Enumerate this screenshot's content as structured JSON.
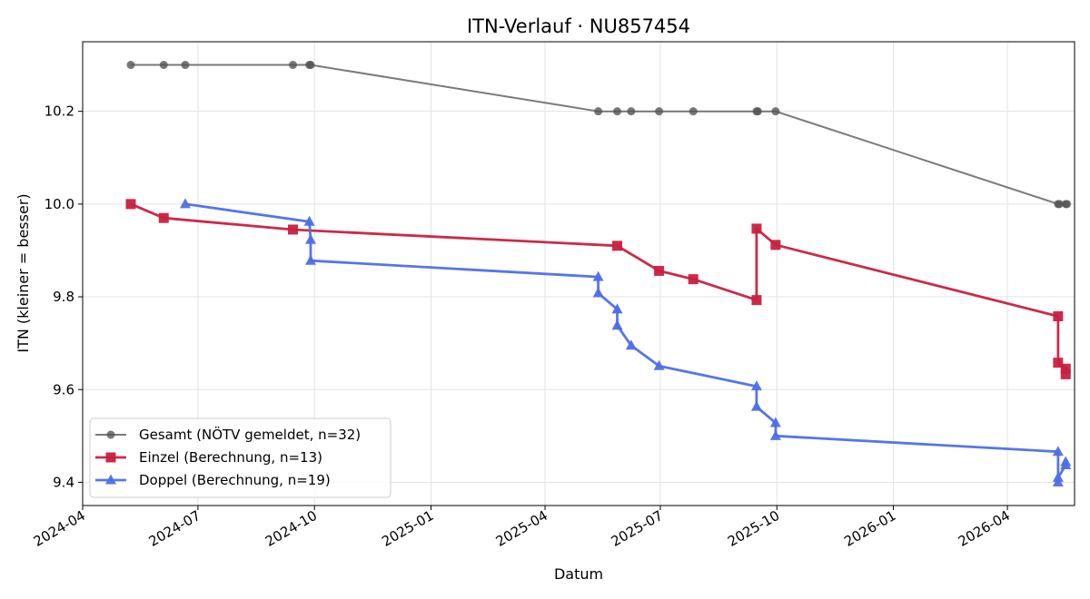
{
  "chart_data": {
    "type": "line",
    "title": "ITN-Verlauf · NU857454",
    "xlabel": "Datum",
    "ylabel": "ITN  (kleiner = besser)",
    "xlim": [
      "2024-04-01",
      "2026-05-24"
    ],
    "ylim": [
      9.35,
      10.35
    ],
    "x_ticks": [
      "2024-04",
      "2024-07",
      "2024-10",
      "2025-01",
      "2025-04",
      "2025-07",
      "2025-10",
      "2026-01",
      "2026-04"
    ],
    "y_ticks": [
      "9.4",
      "9.6",
      "9.8",
      "10.0",
      "10.2"
    ],
    "grid": true,
    "legend_position": "lower-left",
    "series": [
      {
        "name": "Gesamt (NÖTV gemeldet, n=32)",
        "color": "#555555",
        "marker": "circle",
        "points": [
          [
            "2024-05-09",
            10.3
          ],
          [
            "2024-06-04",
            10.3
          ],
          [
            "2024-06-21",
            10.3
          ],
          [
            "2024-09-14",
            10.3
          ],
          [
            "2024-09-27",
            10.3
          ],
          [
            "2024-09-28",
            10.3
          ],
          [
            "2025-05-13",
            10.2
          ],
          [
            "2025-05-28",
            10.2
          ],
          [
            "2025-06-08",
            10.2
          ],
          [
            "2025-06-30",
            10.2
          ],
          [
            "2025-07-27",
            10.2
          ],
          [
            "2025-09-15",
            10.2
          ],
          [
            "2025-09-16",
            10.2
          ],
          [
            "2025-09-30",
            10.2
          ],
          [
            "2026-05-11",
            10.0
          ],
          [
            "2026-05-12",
            10.0
          ],
          [
            "2026-05-17",
            10.0
          ],
          [
            "2026-05-18",
            10.0
          ]
        ]
      },
      {
        "name": "Einzel (Berechnung, n=13)",
        "color": "#c8203f",
        "marker": "square",
        "points": [
          [
            "2024-05-09",
            10.0
          ],
          [
            "2024-06-04",
            9.97
          ],
          [
            "2024-09-14",
            9.945
          ],
          [
            "2025-05-28",
            9.91
          ],
          [
            "2025-06-30",
            9.856
          ],
          [
            "2025-07-27",
            9.838
          ],
          [
            "2025-09-15",
            9.793
          ],
          [
            "2025-09-15",
            9.947
          ],
          [
            "2025-09-30",
            9.912
          ],
          [
            "2026-05-11",
            9.758
          ],
          [
            "2026-05-11",
            9.658
          ],
          [
            "2026-05-17",
            9.645
          ],
          [
            "2026-05-17",
            9.633
          ]
        ]
      },
      {
        "name": "Doppel (Berechnung, n=19)",
        "color": "#4e6ee8",
        "marker": "triangle",
        "points": [
          [
            "2024-06-21",
            10.0
          ],
          [
            "2024-09-27",
            9.962
          ],
          [
            "2024-09-28",
            9.923
          ],
          [
            "2024-09-28",
            9.878
          ],
          [
            "2025-05-13",
            9.843
          ],
          [
            "2025-05-13",
            9.808
          ],
          [
            "2025-05-28",
            9.773
          ],
          [
            "2025-05-28",
            9.738
          ],
          [
            "2025-06-08",
            9.695
          ],
          [
            "2025-06-30",
            9.651
          ],
          [
            "2025-09-15",
            9.607
          ],
          [
            "2025-09-15",
            9.563
          ],
          [
            "2025-09-30",
            9.528
          ],
          [
            "2025-09-30",
            9.5
          ],
          [
            "2026-05-11",
            9.466
          ],
          [
            "2026-05-11",
            9.4
          ],
          [
            "2026-05-11",
            9.41
          ],
          [
            "2026-05-17",
            9.437
          ],
          [
            "2026-05-17",
            9.444
          ]
        ]
      }
    ]
  }
}
